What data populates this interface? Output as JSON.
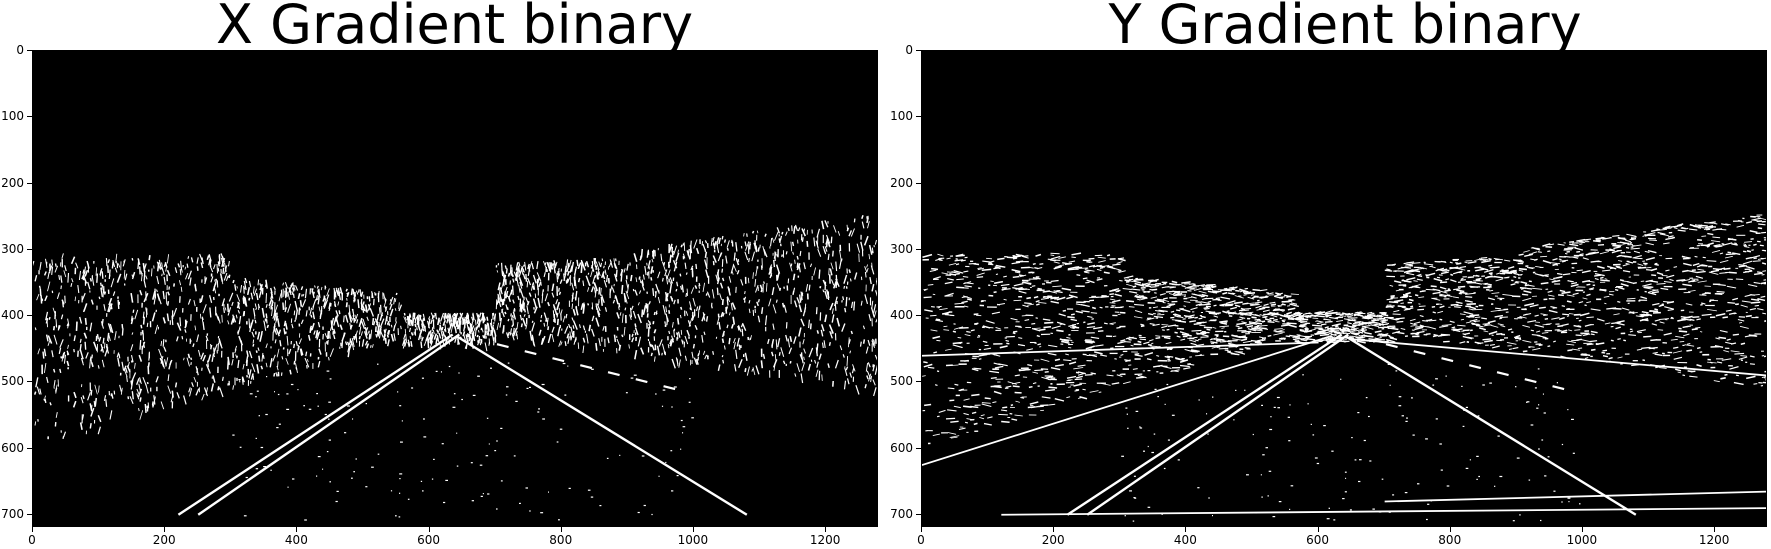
{
  "figure": {
    "panels": [
      {
        "id": "x-gradient",
        "title": "X Gradient binary",
        "x_ticks": [
          "0",
          "200",
          "400",
          "600",
          "800",
          "1000",
          "1200"
        ],
        "y_ticks": [
          "0",
          "100",
          "200",
          "300",
          "400",
          "500",
          "600",
          "700"
        ]
      },
      {
        "id": "y-gradient",
        "title": "Y Gradient binary",
        "x_ticks": [
          "0",
          "200",
          "400",
          "600",
          "800",
          "1000",
          "1200"
        ],
        "y_ticks": [
          "0",
          "100",
          "200",
          "300",
          "400",
          "500",
          "600",
          "700"
        ]
      }
    ],
    "colors": {
      "background": "#000000",
      "edges": "#ffffff"
    }
  }
}
